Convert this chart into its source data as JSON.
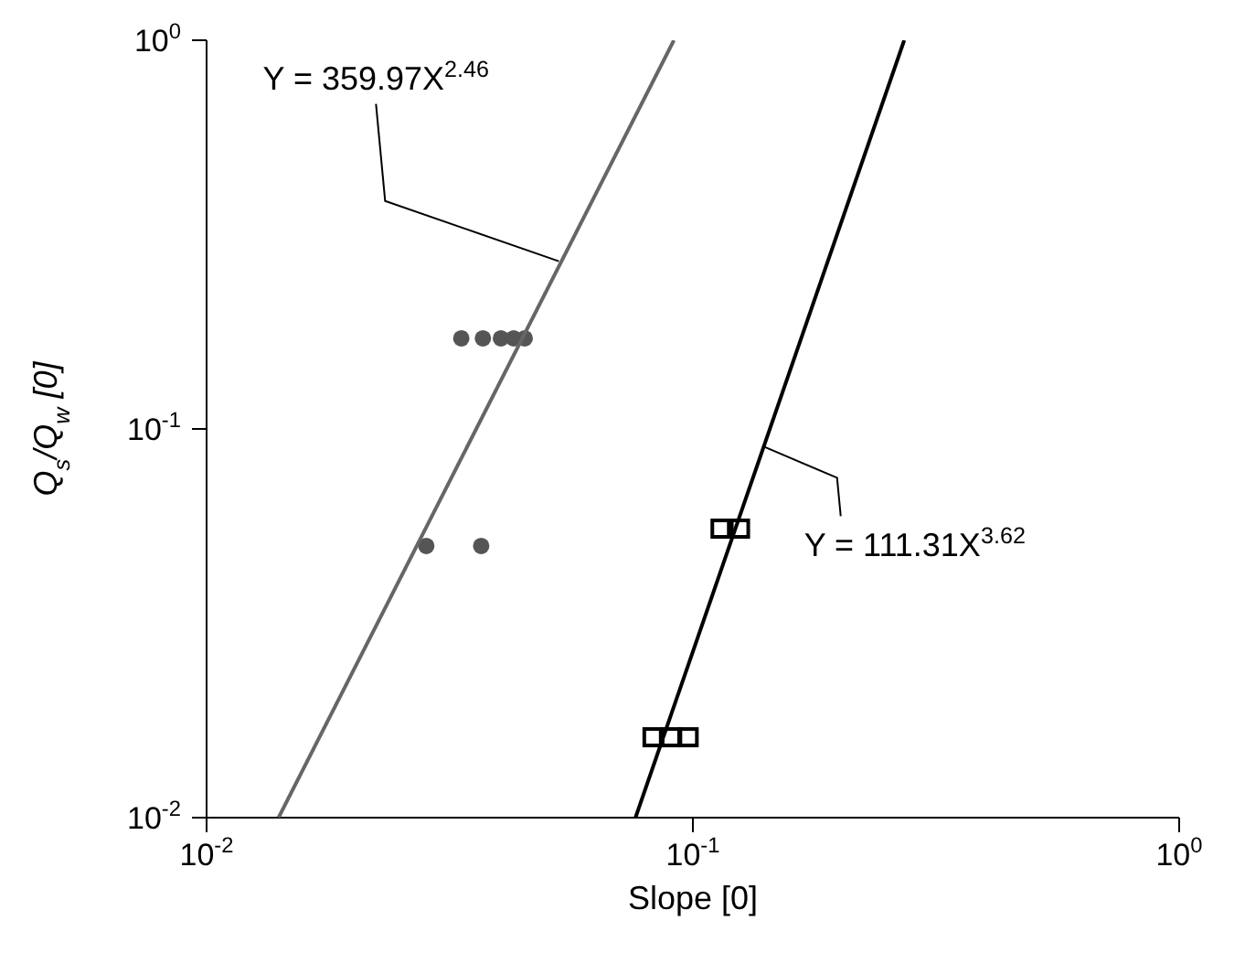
{
  "chart_data": {
    "type": "scatter",
    "xlabel": "Slope [0]",
    "ylabel": "Q$_{s}$/Q$_{w}$ [0]",
    "log": "xy",
    "xlim": [
      0.01,
      1
    ],
    "ylim": [
      0.01,
      1
    ],
    "xticks": [
      {
        "value": 0.01,
        "label": "10$^{-2}$"
      },
      {
        "value": 0.1,
        "label": "10$^{-1}$"
      },
      {
        "value": 1,
        "label": "10$^{0}$"
      }
    ],
    "yticks": [
      {
        "value": 0.01,
        "label": "10$^{-2}$"
      },
      {
        "value": 0.1,
        "label": "10$^{-1}$"
      },
      {
        "value": 1,
        "label": "10$^{0}$"
      }
    ],
    "series": [
      {
        "marker": "circle",
        "color": "#555555",
        "x": [
          0.0334,
          0.037,
          0.0403,
          0.0428,
          0.0451,
          0.0283,
          0.0367
        ],
        "values": [
          0.171,
          0.171,
          0.171,
          0.171,
          0.171,
          0.05,
          0.05
        ]
      },
      {
        "marker": "square",
        "color": "#000000",
        "x": [
          0.114,
          0.125,
          0.0826,
          0.0901,
          0.098
        ],
        "values": [
          0.0554,
          0.0554,
          0.0161,
          0.0161,
          0.0161
        ]
      },
      {
        "type": "line",
        "marker": "none",
        "color": "#666666",
        "x": [
          0.01406,
          0.0914
        ],
        "values": [
          0.01,
          1
        ]
      },
      {
        "type": "line",
        "marker": "none",
        "color": "#000000",
        "x": [
          0.0762,
          0.272
        ],
        "values": [
          0.01,
          1
        ]
      }
    ],
    "annotations": [
      {
        "text": "Y = 359.97X$^{2.46}$",
        "x": 0.053,
        "y": 0.27
      },
      {
        "text": "Y = 111.31X$^{3.62}$",
        "x": 0.14,
        "y": 0.09
      }
    ]
  }
}
